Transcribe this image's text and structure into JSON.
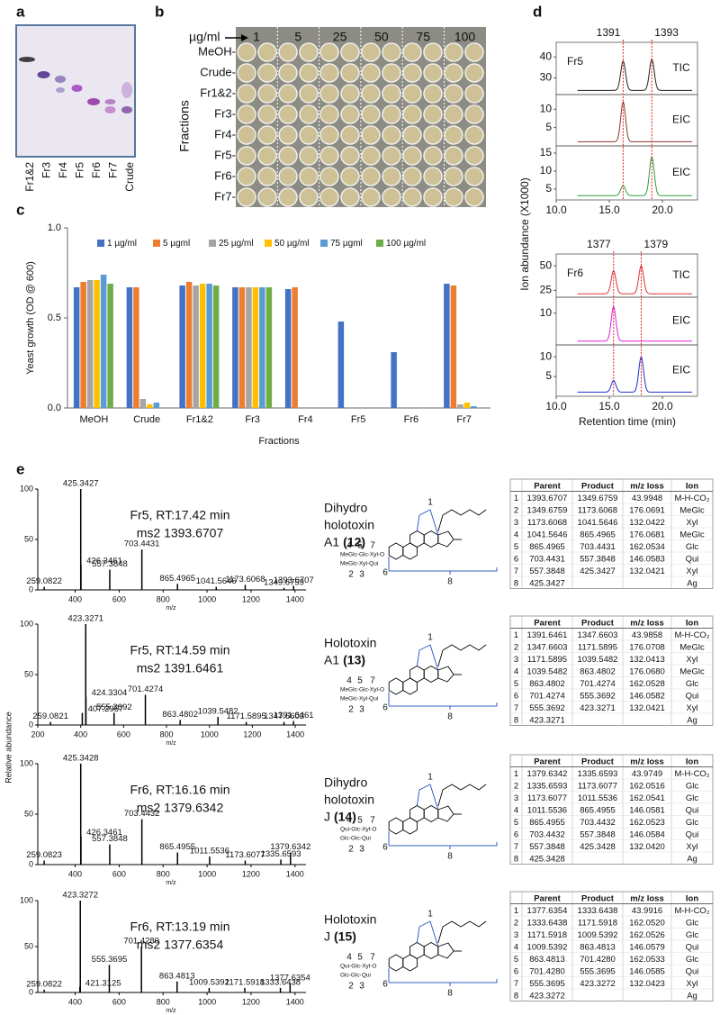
{
  "panel_a": {
    "label": "a",
    "lanes": [
      "Fr1&2",
      "Fr3",
      "Fr4",
      "Fr5",
      "Fr6",
      "Fr7",
      "Crude"
    ]
  },
  "panel_b": {
    "label": "b",
    "unit": "µg/ml",
    "concentrations": [
      "1",
      "5",
      "25",
      "50",
      "75",
      "100"
    ],
    "rows": [
      "MeOH-",
      "Crude-",
      "Fr1&2-",
      "Fr3-",
      "Fr4-",
      "Fr5-",
      "Fr6-",
      "Fr7-"
    ],
    "ylabel": "Fractions"
  },
  "chart_data": {
    "type": "bar",
    "panel": "c",
    "ylabel": "Yeast growth (OD @ 600)",
    "xlabel": "Fractions",
    "categories": [
      "MeOH",
      "Crude",
      "Fr1&2",
      "Fr3",
      "Fr4",
      "Fr5",
      "Fr6",
      "Fr7"
    ],
    "ylim": [
      0,
      1
    ],
    "yticks": [
      {
        "value": 0,
        "label": "0.0"
      },
      {
        "value": 0.5,
        "label": "0.5"
      },
      {
        "value": 1,
        "label": "1.0"
      }
    ],
    "series": [
      {
        "name": "1 µg/ml",
        "color": "#4472c4",
        "values": [
          0.67,
          0.67,
          0.68,
          0.67,
          0.66,
          0.48,
          0.31,
          0.69
        ]
      },
      {
        "name": "5 µgml",
        "color": "#ed7d31",
        "values": [
          0.7,
          0.67,
          0.7,
          0.67,
          0.67,
          0,
          0,
          0.68
        ]
      },
      {
        "name": "25 µg/ml",
        "color": "#a5a5a5",
        "values": [
          0.71,
          0.05,
          0.68,
          0.67,
          0,
          0,
          0,
          0.02
        ]
      },
      {
        "name": "50 µg/ml",
        "color": "#ffc000",
        "values": [
          0.71,
          0.02,
          0.69,
          0.67,
          0,
          0,
          0,
          0.03
        ]
      },
      {
        "name": "75 µgml",
        "color": "#5b9bd5",
        "values": [
          0.74,
          0.03,
          0.69,
          0.67,
          0,
          0,
          0,
          0.01
        ]
      },
      {
        "name": "100 µg/ml",
        "color": "#70ad47",
        "values": [
          0.69,
          0,
          0.68,
          0.67,
          0,
          0,
          0,
          0
        ]
      }
    ]
  },
  "panel_d": {
    "label": "d",
    "ylabel": "Ion abundance (X1000)",
    "xlabel": "Retention time (min)",
    "xlim": [
      10,
      23.3
    ],
    "xticks": [
      {
        "value": 10,
        "label": "10.0"
      },
      {
        "value": 15,
        "label": "15.0"
      },
      {
        "value": 20,
        "label": "20.0"
      }
    ],
    "groups": [
      {
        "sample": "Fr5",
        "peaks": [
          "1391",
          "1393"
        ],
        "peak_rt": [
          16.3,
          19.0
        ],
        "traces": [
          {
            "name": "TIC",
            "color": "#222222",
            "ylim": [
              22,
              47
            ],
            "yticks": [
              30,
              40
            ],
            "heights": [
              38,
              39
            ]
          },
          {
            "name": "EIC",
            "color": "#8b3a2a",
            "ylim": [
              0,
              14
            ],
            "yticks": [
              5,
              10
            ],
            "heights": [
              12,
              0.5
            ]
          },
          {
            "name": "EIC",
            "color": "#2e9e3a",
            "ylim": [
              2,
              17
            ],
            "yticks": [
              5,
              10,
              15
            ],
            "heights": [
              6,
              14
            ]
          }
        ]
      },
      {
        "sample": "Fr6",
        "peaks": [
          "1377",
          "1379"
        ],
        "peak_rt": [
          15.4,
          18.0
        ],
        "traces": [
          {
            "name": "TIC",
            "color": "#e03030",
            "ylim": [
              18,
              62
            ],
            "yticks": [
              25,
              50
            ],
            "heights": [
              45,
              50
            ]
          },
          {
            "name": "EIC",
            "color": "#e020e0",
            "ylim": [
              0,
              15
            ],
            "yticks": [
              10
            ],
            "heights": [
              12,
              1
            ]
          },
          {
            "name": "EIC",
            "color": "#2030d0",
            "ylim": [
              0,
              13
            ],
            "yticks": [
              5,
              10
            ],
            "heights": [
              4,
              10
            ]
          }
        ]
      }
    ]
  },
  "panel_e": {
    "label": "e",
    "ylabel": "Relative abundance",
    "xlabel": "m/z",
    "spectra": [
      {
        "sample_rt": "Fr5, RT:17.42 min",
        "ms2": "ms2 1393.6707",
        "xlim": [
          230,
          1450
        ],
        "xticks": [
          400,
          600,
          800,
          1000,
          1200,
          1400
        ],
        "ylim": [
          0,
          100
        ],
        "yticks": [
          0,
          50,
          100
        ],
        "mz": [
          259.0822,
          425.3427,
          426.3461,
          557.3848,
          703.4431,
          865.4965,
          1041.5646,
          1173.6068,
          1349.6759,
          1393.6707
        ],
        "mz_labels": [
          "259.0822",
          "425.3427",
          "426.3461",
          "557.3848",
          "703.4431",
          "865.4965",
          "1041.5646",
          "1173.6068",
          "1349.6759",
          "1393.6707"
        ],
        "intensity": [
          3,
          100,
          25,
          20,
          40,
          6,
          3,
          5,
          2,
          4
        ]
      },
      {
        "sample_rt": "Fr5, RT:14.59 min",
        "ms2": "ms2 1391.6461",
        "xlim": [
          200,
          1450
        ],
        "xticks": [
          200,
          400,
          600,
          800,
          1000,
          1200,
          1400
        ],
        "ylim": [
          0,
          100
        ],
        "yticks": [
          0,
          50,
          100
        ],
        "mz": [
          259.0821,
          407.2957,
          423.3271,
          424.3304,
          555.3692,
          701.4274,
          863.4802,
          1039.5482,
          1171.5895,
          1347.6603,
          1391.6461
        ],
        "mz_labels": [
          "259.0821",
          "407.2957",
          "423.3271",
          "424.3304",
          "555.3692",
          "701.4274",
          "863.4802",
          "1039.5482",
          "1171.5895",
          "1347.6603",
          "1391.6461"
        ],
        "intensity": [
          3,
          12,
          100,
          28,
          12,
          30,
          5,
          8,
          3,
          3,
          4
        ]
      },
      {
        "sample_rt": "Fr6, RT:16.16 min",
        "ms2": "ms2 1379.6342",
        "xlim": [
          230,
          1450
        ],
        "xticks": [
          400,
          600,
          800,
          1000,
          1200,
          1400
        ],
        "ylim": [
          0,
          100
        ],
        "yticks": [
          0,
          50,
          100
        ],
        "mz": [
          259.0823,
          425.3428,
          426.3461,
          557.3848,
          703.4432,
          865.4955,
          1011.5536,
          1173.6077,
          1335.6593,
          1379.6342
        ],
        "mz_labels": [
          "259.0823",
          "425.3428",
          "426.3461",
          "557.3848",
          "703.4432",
          "865.4955",
          "1011.5536",
          "1173.6077",
          "1335.6593",
          "1379.6342"
        ],
        "intensity": [
          4,
          100,
          28,
          20,
          45,
          12,
          8,
          4,
          5,
          12
        ]
      },
      {
        "sample_rt": "Fr6, RT:13.19 min",
        "ms2": "ms2 1377.6354",
        "xlim": [
          230,
          1450
        ],
        "xticks": [
          400,
          600,
          800,
          1000,
          1200,
          1400
        ],
        "ylim": [
          0,
          100
        ],
        "yticks": [
          0,
          50,
          100
        ],
        "mz": [
          259.0822,
          421.3125,
          423.3272,
          555.3695,
          701.428,
          863.4813,
          1009.5392,
          1171.5918,
          1333.6438,
          1377.6354
        ],
        "mz_labels": [
          "259.0822",
          "421.3125",
          "423.3272",
          "555.3695",
          "701.4280",
          "863.4813",
          "1009.5392",
          "1171.5918",
          "1333.6438",
          "1377.6354"
        ],
        "intensity": [
          3,
          6,
          100,
          30,
          50,
          12,
          5,
          5,
          5,
          10
        ]
      }
    ],
    "structures": [
      {
        "name_lines": [
          "Dihydro",
          "holotoxin",
          "A1"
        ],
        "number": "(12)",
        "chain": [
          "MeGlc-Glc-Xyl-O",
          "MeGlc-Xyl-Qui"
        ]
      },
      {
        "name_lines": [
          "Holotoxin",
          "A1"
        ],
        "number": "(13)",
        "chain": [
          "MeGlc-Glc-Xyl-O",
          "MeGlc-Xyl-Qui"
        ]
      },
      {
        "name_lines": [
          "Dihydro",
          "holotoxin",
          "J"
        ],
        "number": "(14)",
        "chain": [
          "Qui-Glc-Xyl-O",
          "Glc-Glc-Qui"
        ]
      },
      {
        "name_lines": [
          "Holotoxin",
          "J"
        ],
        "number": "(15)",
        "chain": [
          "Qui-Glc-Xyl-O",
          "Glc-Glc-Qui"
        ]
      }
    ],
    "site_numbers": [
      "1",
      "2",
      "3",
      "4",
      "5",
      "6",
      "7",
      "8"
    ],
    "table_header": [
      "Parent",
      "Product",
      "m/z loss",
      "Ion"
    ],
    "tables": [
      [
        [
          "1",
          "1393.6707",
          "1349.6759",
          "43.9948",
          "M-H-CO₂"
        ],
        [
          "2",
          "1349.6759",
          "1173.6068",
          "176.0691",
          "MeGlc"
        ],
        [
          "3",
          "1173.6068",
          "1041.5646",
          "132.0422",
          "Xyl"
        ],
        [
          "4",
          "1041.5646",
          "865.4965",
          "176.0681",
          "MeGlc"
        ],
        [
          "5",
          "865.4965",
          "703.4431",
          "162.0534",
          "Glc"
        ],
        [
          "6",
          "703.4431",
          "557.3848",
          "146.0583",
          "Qui"
        ],
        [
          "7",
          "557.3848",
          "425.3427",
          "132.0421",
          "Xyl"
        ],
        [
          "8",
          "425.3427",
          null,
          null,
          "Ag"
        ]
      ],
      [
        [
          "1",
          "1391.6461",
          "1347.6603",
          "43.9858",
          "M-H-CO₂"
        ],
        [
          "2",
          "1347.6603",
          "1171.5895",
          "176.0708",
          "MeGlc"
        ],
        [
          "3",
          "1171.5895",
          "1039.5482",
          "132.0413",
          "Xyl"
        ],
        [
          "4",
          "1039.5482",
          "863.4802",
          "176.0680",
          "MeGlc"
        ],
        [
          "5",
          "863.4802",
          "701.4274",
          "162.0528",
          "Glc"
        ],
        [
          "6",
          "701.4274",
          "555.3692",
          "146.0582",
          "Qui"
        ],
        [
          "7",
          "555.3692",
          "423.3271",
          "132.0421",
          "Xyl"
        ],
        [
          "8",
          "423.3271",
          null,
          null,
          "Ag"
        ]
      ],
      [
        [
          "1",
          "1379.6342",
          "1335.6593",
          "43.9749",
          "M-H-CO₂"
        ],
        [
          "2",
          "1335.6593",
          "1173.6077",
          "162.0516",
          "Glc"
        ],
        [
          "3",
          "1173.6077",
          "1011.5536",
          "162.0541",
          "Glc"
        ],
        [
          "4",
          "1011.5536",
          "865.4955",
          "146.0581",
          "Qui"
        ],
        [
          "5",
          "865.4955",
          "703.4432",
          "162.0523",
          "Glc"
        ],
        [
          "6",
          "703.4432",
          "557.3848",
          "146.0584",
          "Qui"
        ],
        [
          "7",
          "557.3848",
          "425.3428",
          "132.0420",
          "Xyl"
        ],
        [
          "8",
          "425.3428",
          null,
          null,
          "Ag"
        ]
      ],
      [
        [
          "1",
          "1377.6354",
          "1333.6438",
          "43.9916",
          "M-H-CO₂"
        ],
        [
          "2",
          "1333.6438",
          "1171.5918",
          "162.0520",
          "Glc"
        ],
        [
          "3",
          "1171.5918",
          "1009.5392",
          "162.0526",
          "Glc"
        ],
        [
          "4",
          "1009.5392",
          "863.4813",
          "146.0579",
          "Qui"
        ],
        [
          "5",
          "863.4813",
          "701.4280",
          "162.0533",
          "Glc"
        ],
        [
          "6",
          "701.4280",
          "555.3695",
          "146.0585",
          "Qui"
        ],
        [
          "7",
          "555.3695",
          "423.3272",
          "132.0423",
          "Xyl"
        ],
        [
          "8",
          "423.3272",
          null,
          null,
          "Ag"
        ]
      ]
    ]
  }
}
